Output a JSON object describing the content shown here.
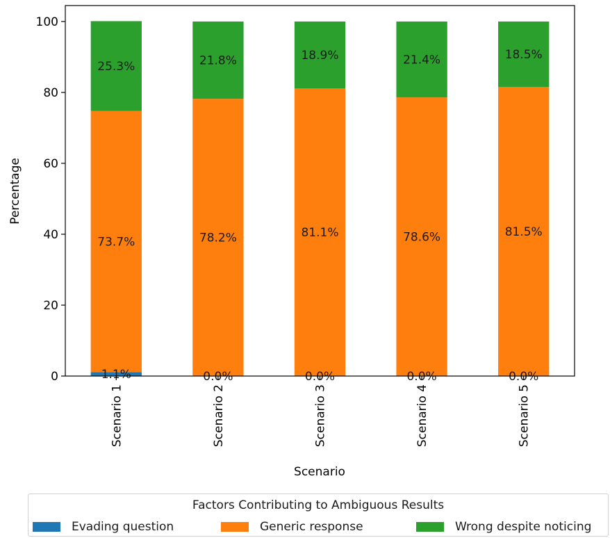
{
  "chart_data": {
    "type": "bar",
    "stacked": true,
    "percent_of_total": true,
    "categories": [
      "Scenario 1",
      "Scenario 2",
      "Scenario 3",
      "Scenario 4",
      "Scenario 5"
    ],
    "series": [
      {
        "name": "Evading question",
        "values": [
          1.1,
          0.0,
          0.0,
          0.0,
          0.0
        ],
        "labels": [
          "1.1%",
          "0.0%",
          "0.0%",
          "0.0%",
          "0.0%"
        ],
        "color": "#1f77b4"
      },
      {
        "name": "Generic response",
        "values": [
          73.7,
          78.2,
          81.1,
          78.6,
          81.5
        ],
        "labels": [
          "73.7%",
          "78.2%",
          "81.1%",
          "78.6%",
          "81.5%"
        ],
        "color": "#ff7f0e"
      },
      {
        "name": "Wrong despite noticing",
        "values": [
          25.3,
          21.8,
          18.9,
          21.4,
          18.5
        ],
        "labels": [
          "25.3%",
          "21.8%",
          "18.9%",
          "21.4%",
          "18.5%"
        ],
        "color": "#2ca02c"
      }
    ],
    "xlabel": "Scenario",
    "ylabel": "Percentage",
    "ylim": [
      0,
      104.5
    ],
    "yticks": [
      0,
      20,
      40,
      60,
      80,
      100
    ],
    "grid": false,
    "legend_title": "Factors Contributing to Ambiguous Results",
    "legend_position": "bottom-center"
  }
}
